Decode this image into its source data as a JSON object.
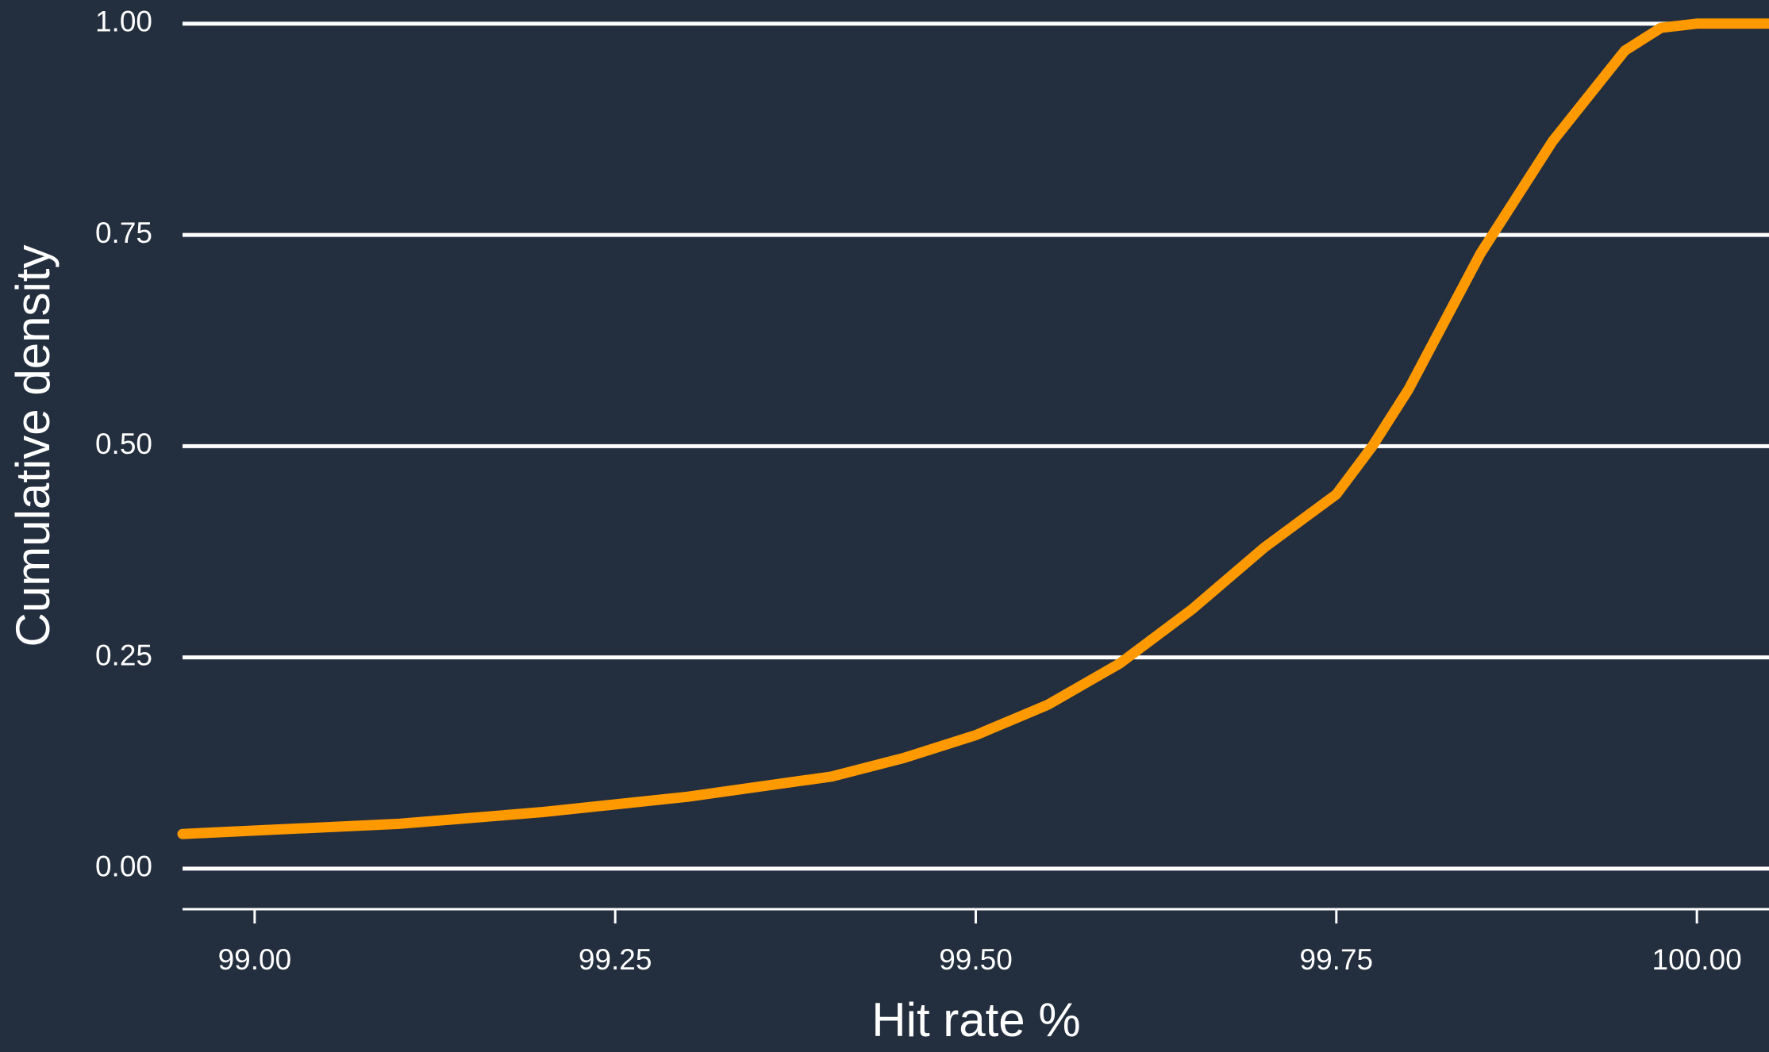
{
  "chart_data": {
    "type": "line",
    "xlabel": "Hit rate %",
    "ylabel": "Cumulative density",
    "x": [
      98.95,
      99.0,
      99.1,
      99.2,
      99.3,
      99.4,
      99.45,
      99.5,
      99.55,
      99.6,
      99.65,
      99.7,
      99.75,
      99.775,
      99.8,
      99.85,
      99.9,
      99.95,
      99.975,
      100.0,
      100.05
    ],
    "values": [
      0.041,
      0.045,
      0.053,
      0.067,
      0.085,
      0.109,
      0.131,
      0.158,
      0.194,
      0.243,
      0.307,
      0.38,
      0.443,
      0.5,
      0.567,
      0.728,
      0.861,
      0.968,
      0.995,
      1.0,
      1.0
    ],
    "color": "#ff9900",
    "xlim": [
      98.95,
      100.05
    ],
    "ylim": [
      -0.048,
      1.028
    ],
    "xticks": [
      {
        "value": 99.0,
        "label": "99.00"
      },
      99.25,
      {
        "value": 99.5,
        "label": "99.50"
      },
      99.75,
      {
        "value": 100.0,
        "label": "100.00"
      }
    ],
    "yticks": [
      {
        "value": 0,
        "label": "0.00"
      },
      {
        "value": 0.25,
        "label": "0.25"
      },
      {
        "value": 0.5,
        "label": "0.50"
      },
      {
        "value": 0.75,
        "label": "0.75"
      },
      {
        "value": 1.0,
        "label": "1.00"
      }
    ],
    "grid": true
  }
}
